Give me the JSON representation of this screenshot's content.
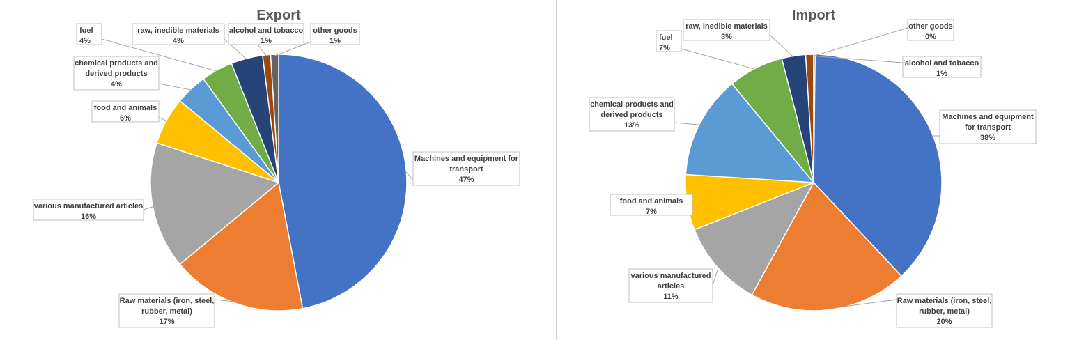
{
  "colors": {
    "machines": "#4472C4",
    "raw_materials": "#ED7D31",
    "manufactured": "#A5A5A5",
    "food": "#FFC000",
    "chemical": "#5B9BD5",
    "fuel": "#70AD47",
    "raw_inedible": "#264478",
    "alcohol": "#9E480E",
    "other": "#636363"
  },
  "chart_data": [
    {
      "type": "pie",
      "title": "Export",
      "grid": false,
      "legend": "none",
      "slices": [
        {
          "key": "machines",
          "name": "Machines and equipment for transport",
          "value": 47,
          "label": "47%"
        },
        {
          "key": "raw_materials",
          "name": "Raw materials (iron, steel, rubber, metal)",
          "value": 17,
          "label": "17%"
        },
        {
          "key": "manufactured",
          "name": "various manufactured articles",
          "value": 16,
          "label": "16%"
        },
        {
          "key": "food",
          "name": "food and animals",
          "value": 6,
          "label": "6%"
        },
        {
          "key": "chemical",
          "name": "chemical products and derived products",
          "value": 4,
          "label": "4%"
        },
        {
          "key": "fuel",
          "name": "fuel",
          "value": 4,
          "label": "4%"
        },
        {
          "key": "raw_inedible",
          "name": "raw, inedible materials",
          "value": 4,
          "label": "4%"
        },
        {
          "key": "alcohol",
          "name": "alcohol and tobacco",
          "value": 1,
          "label": "1%"
        },
        {
          "key": "other",
          "name": "other goods",
          "value": 1,
          "label": "1%"
        }
      ]
    },
    {
      "type": "pie",
      "title": "Import",
      "grid": false,
      "legend": "none",
      "slices": [
        {
          "key": "machines",
          "name": "Machines and equipment for transport",
          "value": 38,
          "label": "38%"
        },
        {
          "key": "raw_materials",
          "name": "Raw materials (iron, steel, rubber, metal)",
          "value": 20,
          "label": "20%"
        },
        {
          "key": "manufactured",
          "name": "various manufactured articles",
          "value": 11,
          "label": "11%"
        },
        {
          "key": "food",
          "name": "food and animals",
          "value": 7,
          "label": "7%"
        },
        {
          "key": "chemical",
          "name": "chemical products and derived products",
          "value": 13,
          "label": "13%"
        },
        {
          "key": "fuel",
          "name": "fuel",
          "value": 7,
          "label": "7%"
        },
        {
          "key": "raw_inedible",
          "name": "raw, inedible materials",
          "value": 3,
          "label": "3%"
        },
        {
          "key": "alcohol",
          "name": "alcohol and tobacco",
          "value": 1,
          "label": "1%"
        },
        {
          "key": "other",
          "name": "other goods",
          "value": 0,
          "label": "0%"
        }
      ]
    }
  ]
}
